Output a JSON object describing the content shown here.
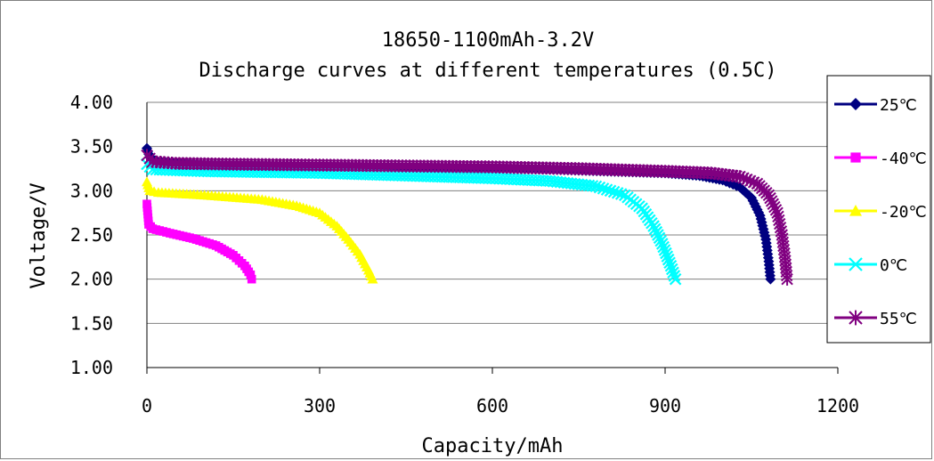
{
  "chart_data": {
    "type": "line",
    "title": "18650-1100mAh-3.2V",
    "subtitle": "Discharge curves at different temperatures (0.5C)",
    "xlabel": "Capacity/mAh",
    "ylabel": "Voltage/V",
    "xlim": [
      0,
      1200
    ],
    "ylim": [
      1.0,
      4.0
    ],
    "x_ticks": [
      "0",
      "300",
      "600",
      "900",
      "1200"
    ],
    "y_ticks": [
      "1.00",
      "1.50",
      "2.00",
      "2.50",
      "3.00",
      "3.50",
      "4.00"
    ],
    "grid": "horizontal",
    "legend_position": "right",
    "series": [
      {
        "name": "25℃",
        "color": "#000080",
        "marker": "diamond",
        "points": [
          [
            0,
            3.48
          ],
          [
            5,
            3.38
          ],
          [
            20,
            3.32
          ],
          [
            100,
            3.3
          ],
          [
            200,
            3.29
          ],
          [
            300,
            3.28
          ],
          [
            400,
            3.27
          ],
          [
            500,
            3.26
          ],
          [
            600,
            3.25
          ],
          [
            700,
            3.24
          ],
          [
            800,
            3.22
          ],
          [
            900,
            3.2
          ],
          [
            960,
            3.17
          ],
          [
            1000,
            3.12
          ],
          [
            1030,
            3.04
          ],
          [
            1050,
            2.92
          ],
          [
            1065,
            2.72
          ],
          [
            1075,
            2.45
          ],
          [
            1080,
            2.2
          ],
          [
            1083,
            2.0
          ]
        ]
      },
      {
        "name": "-40℃",
        "color": "#FF00FF",
        "marker": "square",
        "points": [
          [
            0,
            2.85
          ],
          [
            3,
            2.62
          ],
          [
            10,
            2.57
          ],
          [
            40,
            2.52
          ],
          [
            80,
            2.46
          ],
          [
            120,
            2.38
          ],
          [
            150,
            2.27
          ],
          [
            170,
            2.15
          ],
          [
            180,
            2.05
          ],
          [
            182,
            2.0
          ]
        ]
      },
      {
        "name": "-20℃",
        "color": "#FFFF00",
        "marker": "triangle",
        "points": [
          [
            0,
            3.1
          ],
          [
            5,
            3.0
          ],
          [
            20,
            2.98
          ],
          [
            100,
            2.95
          ],
          [
            200,
            2.9
          ],
          [
            260,
            2.83
          ],
          [
            300,
            2.75
          ],
          [
            330,
            2.6
          ],
          [
            350,
            2.45
          ],
          [
            370,
            2.28
          ],
          [
            385,
            2.1
          ],
          [
            392,
            2.0
          ]
        ]
      },
      {
        "name": "0℃",
        "color": "#00FFFF",
        "marker": "x",
        "points": [
          [
            0,
            3.3
          ],
          [
            10,
            3.24
          ],
          [
            100,
            3.22
          ],
          [
            200,
            3.21
          ],
          [
            300,
            3.2
          ],
          [
            400,
            3.18
          ],
          [
            500,
            3.16
          ],
          [
            600,
            3.14
          ],
          [
            700,
            3.11
          ],
          [
            780,
            3.05
          ],
          [
            830,
            2.95
          ],
          [
            860,
            2.8
          ],
          [
            880,
            2.6
          ],
          [
            895,
            2.4
          ],
          [
            910,
            2.15
          ],
          [
            918,
            2.0
          ]
        ]
      },
      {
        "name": "55℃",
        "color": "#800080",
        "marker": "star",
        "points": [
          [
            0,
            3.4
          ],
          [
            10,
            3.33
          ],
          [
            50,
            3.31
          ],
          [
            150,
            3.3
          ],
          [
            300,
            3.29
          ],
          [
            450,
            3.28
          ],
          [
            600,
            3.27
          ],
          [
            750,
            3.25
          ],
          [
            900,
            3.22
          ],
          [
            980,
            3.2
          ],
          [
            1030,
            3.16
          ],
          [
            1060,
            3.08
          ],
          [
            1080,
            2.95
          ],
          [
            1095,
            2.75
          ],
          [
            1103,
            2.5
          ],
          [
            1108,
            2.25
          ],
          [
            1112,
            2.0
          ]
        ]
      }
    ]
  }
}
